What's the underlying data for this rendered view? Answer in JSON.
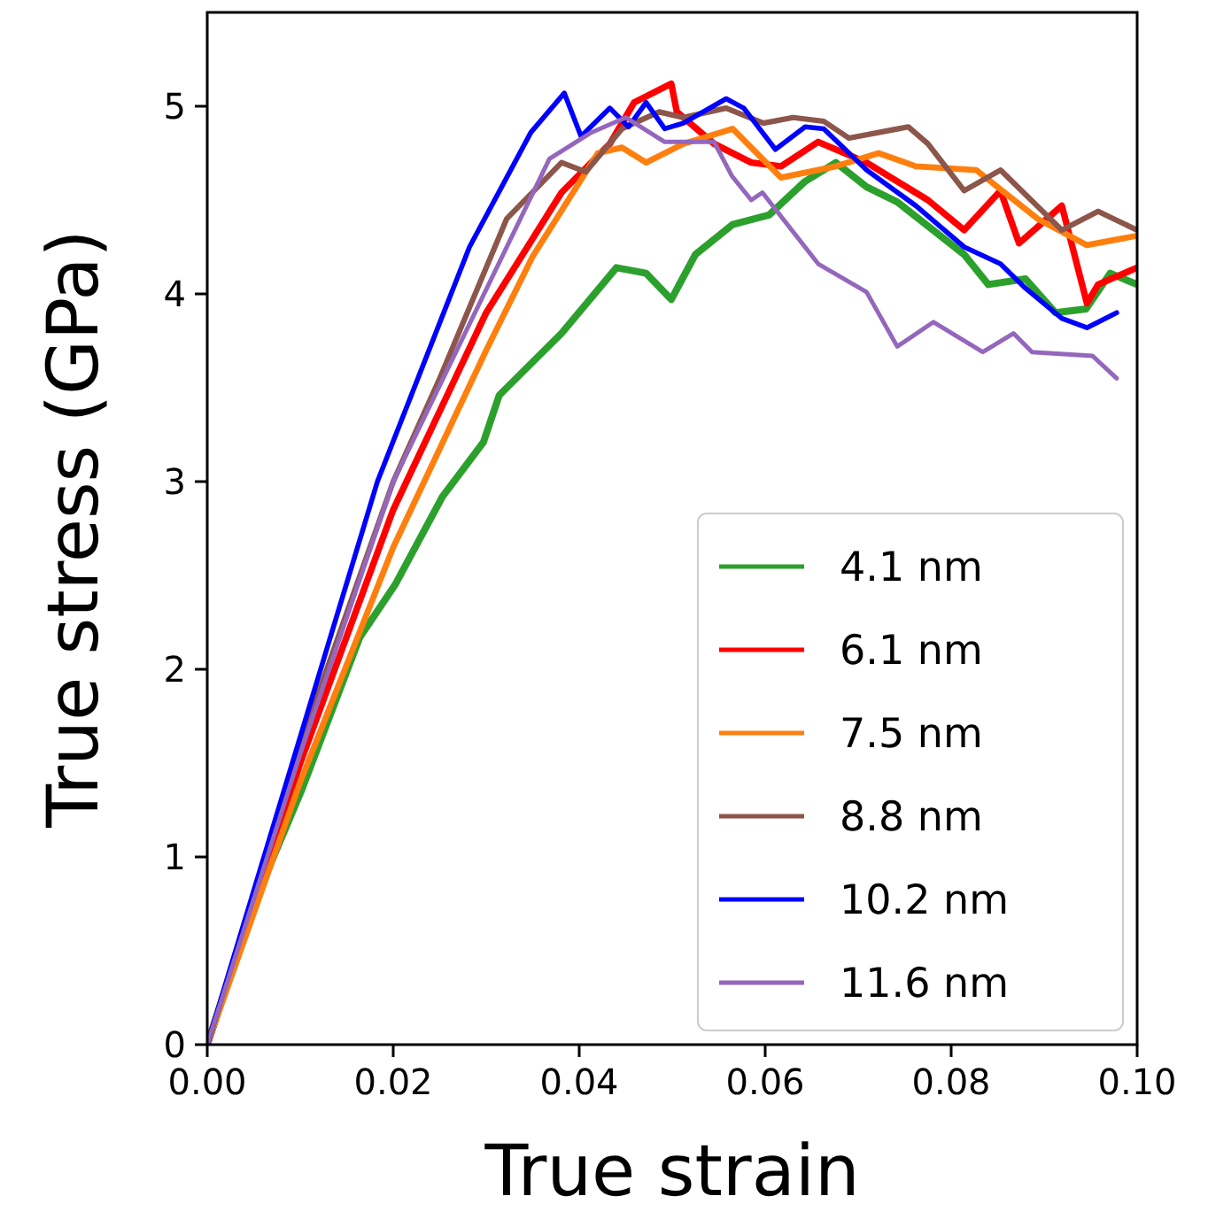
{
  "chart_data": {
    "type": "line",
    "xlabel": "True strain",
    "ylabel": "True stress (GPa)",
    "xlim": [
      0,
      0.1
    ],
    "ylim": [
      0,
      5.5
    ],
    "xticks": [
      {
        "value": 0,
        "label": "0.00"
      },
      {
        "value": 0.02,
        "label": "0.02"
      },
      {
        "value": 0.04,
        "label": "0.04"
      },
      {
        "value": 0.06,
        "label": "0.06"
      },
      {
        "value": 0.08,
        "label": "0.08"
      },
      {
        "value": 0.1,
        "label": "0.10"
      }
    ],
    "yticks": [
      0,
      1,
      2,
      3,
      4,
      5
    ],
    "grid": false,
    "legend": "bottom right",
    "line_style": "solid",
    "marker": "none",
    "series": [
      {
        "name": "4.1 nm",
        "color": "#2ca02c",
        "x": [
          0,
          0.005,
          0.0101,
          0.0164,
          0.0202,
          0.0253,
          0.0297,
          0.0314,
          0.0381,
          0.044,
          0.0472,
          0.0499,
          0.0525,
          0.0565,
          0.0604,
          0.0643,
          0.0676,
          0.0709,
          0.0742,
          0.0814,
          0.084,
          0.088,
          0.0912,
          0.0945,
          0.0971,
          0.1
        ],
        "values": [
          0,
          0.75,
          1.35,
          2.17,
          2.45,
          2.92,
          3.21,
          3.46,
          3.79,
          4.14,
          4.11,
          3.97,
          4.21,
          4.37,
          4.42,
          4.6,
          4.7,
          4.57,
          4.49,
          4.21,
          4.05,
          4.08,
          3.9,
          3.92,
          4.11,
          4.05
        ]
      },
      {
        "name": "6.1 nm",
        "color": "#ff0000",
        "x": [
          0,
          0.01,
          0.02,
          0.03,
          0.0381,
          0.0433,
          0.0459,
          0.0499,
          0.0505,
          0.0545,
          0.0585,
          0.0617,
          0.0657,
          0.0709,
          0.0775,
          0.0814,
          0.0853,
          0.0873,
          0.0919,
          0.0946,
          0.0958,
          0.1
        ],
        "values": [
          0,
          1.5,
          2.85,
          3.9,
          4.54,
          4.8,
          5.02,
          5.12,
          4.97,
          4.8,
          4.7,
          4.68,
          4.81,
          4.7,
          4.5,
          4.34,
          4.55,
          4.27,
          4.47,
          3.95,
          4.05,
          4.14
        ]
      },
      {
        "name": "7.5 nm",
        "color": "#ff7f0e",
        "x": [
          0,
          0.01,
          0.02,
          0.03,
          0.035,
          0.042,
          0.0446,
          0.0472,
          0.0512,
          0.0565,
          0.0617,
          0.0676,
          0.0722,
          0.0762,
          0.0827,
          0.0893,
          0.0946,
          0.1
        ],
        "values": [
          0,
          1.4,
          2.65,
          3.7,
          4.2,
          4.75,
          4.78,
          4.7,
          4.8,
          4.88,
          4.62,
          4.68,
          4.75,
          4.68,
          4.66,
          4.4,
          4.26,
          4.31
        ]
      },
      {
        "name": "8.8 nm",
        "color": "#8c564b",
        "x": [
          0,
          0.01,
          0.02,
          0.025,
          0.0322,
          0.0381,
          0.0407,
          0.0446,
          0.0486,
          0.0512,
          0.0558,
          0.0598,
          0.063,
          0.0663,
          0.069,
          0.0754,
          0.0775,
          0.0814,
          0.0853,
          0.0919,
          0.0958,
          0.1
        ],
        "values": [
          0,
          1.6,
          3.0,
          3.55,
          4.4,
          4.7,
          4.65,
          4.88,
          4.97,
          4.94,
          4.99,
          4.91,
          4.94,
          4.92,
          4.83,
          4.89,
          4.8,
          4.55,
          4.66,
          4.34,
          4.44,
          4.34
        ]
      },
      {
        "name": "10.2 nm",
        "color": "#0000ff",
        "x": [
          0,
          0.01,
          0.0183,
          0.0282,
          0.0348,
          0.0384,
          0.0402,
          0.0433,
          0.0453,
          0.0472,
          0.0492,
          0.0512,
          0.0558,
          0.0577,
          0.0611,
          0.0643,
          0.0663,
          0.0709,
          0.0762,
          0.0814,
          0.0853,
          0.088,
          0.0919,
          0.0946,
          0.0978
        ],
        "values": [
          0,
          1.64,
          3.0,
          4.25,
          4.86,
          5.07,
          4.84,
          4.99,
          4.89,
          5.02,
          4.88,
          4.91,
          5.04,
          4.99,
          4.77,
          4.89,
          4.88,
          4.66,
          4.47,
          4.25,
          4.16,
          4.03,
          3.87,
          3.82,
          3.9
        ]
      },
      {
        "name": "11.6 nm",
        "color": "#9467bd",
        "x": [
          0,
          0.01,
          0.02,
          0.0368,
          0.0413,
          0.045,
          0.0492,
          0.0545,
          0.0564,
          0.0585,
          0.0597,
          0.0657,
          0.0709,
          0.0742,
          0.0781,
          0.0834,
          0.0867,
          0.0887,
          0.0952,
          0.0978
        ],
        "values": [
          0,
          1.55,
          3.0,
          4.72,
          4.86,
          4.94,
          4.81,
          4.81,
          4.63,
          4.5,
          4.54,
          4.16,
          4.01,
          3.72,
          3.85,
          3.69,
          3.79,
          3.69,
          3.67,
          3.55
        ]
      }
    ]
  }
}
